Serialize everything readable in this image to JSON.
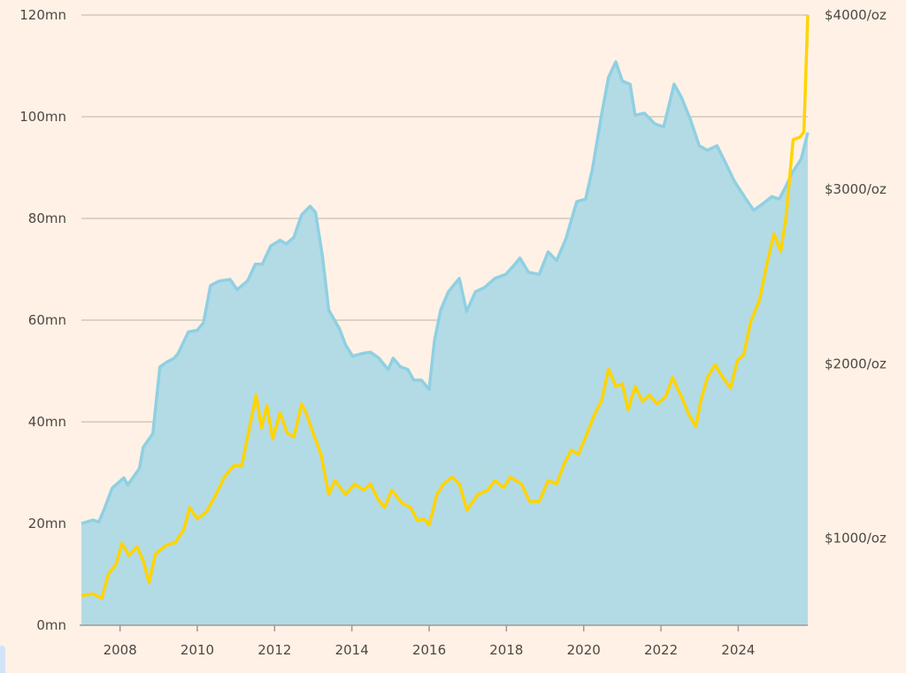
{
  "chart_data": {
    "type": "area+line",
    "title": "",
    "xlabel": "",
    "ylabel_left": "",
    "ylabel_right": "",
    "xlim": [
      2007.0,
      2025.8
    ],
    "x_ticks": [
      "2008",
      "2010",
      "2012",
      "2014",
      "2016",
      "2018",
      "2020",
      "2022",
      "2024"
    ],
    "left_axis": {
      "ylim": [
        0,
        120
      ],
      "ticks": [
        0,
        20,
        40,
        60,
        80,
        100,
        120
      ],
      "tick_labels": [
        "0mn",
        "20mn",
        "40mn",
        "60mn",
        "80mn",
        "100mn",
        "120mn"
      ]
    },
    "right_axis": {
      "ylim": [
        500,
        4000
      ],
      "ticks": [
        1000,
        2000,
        3000,
        4000
      ],
      "tick_labels": [
        "$1000/oz",
        "$2000/oz",
        "$3000/oz",
        "$4000/oz"
      ]
    },
    "grid": "horizontal",
    "colors": {
      "background": "#fff1e5",
      "area_fill": "#b3dbe5",
      "area_line": "#8fd0e3",
      "gold_line": "#ffd400",
      "grid": "#cbbfb4",
      "text": "#4d4845"
    },
    "series": [
      {
        "axis": "left",
        "type": "area",
        "points": [
          [
            2007.0,
            20
          ],
          [
            2007.3,
            20.7
          ],
          [
            2007.45,
            20.3
          ],
          [
            2007.6,
            23
          ],
          [
            2007.8,
            27
          ],
          [
            2008.1,
            29
          ],
          [
            2008.2,
            27.6
          ],
          [
            2008.5,
            30.8
          ],
          [
            2008.6,
            35
          ],
          [
            2008.85,
            37.7
          ],
          [
            2009.03,
            50.8
          ],
          [
            2009.2,
            51.7
          ],
          [
            2009.4,
            52.5
          ],
          [
            2009.5,
            53.4
          ],
          [
            2009.77,
            57.7
          ],
          [
            2010.0,
            58
          ],
          [
            2010.16,
            59.5
          ],
          [
            2010.34,
            66.8
          ],
          [
            2010.57,
            67.7
          ],
          [
            2010.85,
            68
          ],
          [
            2011.03,
            66
          ],
          [
            2011.3,
            67.7
          ],
          [
            2011.5,
            71
          ],
          [
            2011.68,
            71
          ],
          [
            2011.9,
            74.6
          ],
          [
            2012.14,
            75.7
          ],
          [
            2012.3,
            75
          ],
          [
            2012.5,
            76.3
          ],
          [
            2012.7,
            80.7
          ],
          [
            2012.92,
            82.4
          ],
          [
            2013.06,
            81.2
          ],
          [
            2013.24,
            72.5
          ],
          [
            2013.4,
            62
          ],
          [
            2013.68,
            58.3
          ],
          [
            2013.84,
            55.1
          ],
          [
            2014.02,
            52.9
          ],
          [
            2014.25,
            53.4
          ],
          [
            2014.48,
            53.7
          ],
          [
            2014.7,
            52.5
          ],
          [
            2014.94,
            50.3
          ],
          [
            2015.07,
            52.5
          ],
          [
            2015.26,
            50.8
          ],
          [
            2015.45,
            50.3
          ],
          [
            2015.6,
            48.2
          ],
          [
            2015.8,
            48.2
          ],
          [
            2016.0,
            46.4
          ],
          [
            2016.14,
            56
          ],
          [
            2016.3,
            62
          ],
          [
            2016.5,
            65.6
          ],
          [
            2016.78,
            68.2
          ],
          [
            2016.97,
            61.7
          ],
          [
            2017.2,
            65.6
          ],
          [
            2017.43,
            66.4
          ],
          [
            2017.7,
            68.2
          ],
          [
            2017.98,
            69
          ],
          [
            2018.2,
            70.8
          ],
          [
            2018.35,
            72.2
          ],
          [
            2018.57,
            69.4
          ],
          [
            2018.85,
            69
          ],
          [
            2019.08,
            73.4
          ],
          [
            2019.3,
            71.7
          ],
          [
            2019.54,
            76
          ],
          [
            2019.82,
            83.3
          ],
          [
            2020.05,
            83.8
          ],
          [
            2020.23,
            89.9
          ],
          [
            2020.46,
            100.3
          ],
          [
            2020.64,
            107.7
          ],
          [
            2020.83,
            110.8
          ],
          [
            2021.0,
            107
          ],
          [
            2021.2,
            106.4
          ],
          [
            2021.33,
            100.3
          ],
          [
            2021.57,
            100.7
          ],
          [
            2021.84,
            98.6
          ],
          [
            2022.07,
            98
          ],
          [
            2022.2,
            102
          ],
          [
            2022.34,
            106.4
          ],
          [
            2022.53,
            103.8
          ],
          [
            2022.76,
            99.5
          ],
          [
            2022.99,
            94.3
          ],
          [
            2023.2,
            93.4
          ],
          [
            2023.45,
            94.3
          ],
          [
            2023.68,
            90.8
          ],
          [
            2023.9,
            87.3
          ],
          [
            2024.2,
            83.8
          ],
          [
            2024.4,
            81.6
          ],
          [
            2024.64,
            82.9
          ],
          [
            2024.87,
            84.3
          ],
          [
            2025.06,
            83.8
          ],
          [
            2025.24,
            86.4
          ],
          [
            2025.4,
            89
          ],
          [
            2025.63,
            91.7
          ],
          [
            2025.8,
            96.9
          ]
        ]
      },
      {
        "axis": "right",
        "type": "line",
        "points": [
          [
            2007.0,
            670
          ],
          [
            2007.3,
            680
          ],
          [
            2007.53,
            655
          ],
          [
            2007.7,
            795
          ],
          [
            2007.9,
            850
          ],
          [
            2008.05,
            970
          ],
          [
            2008.23,
            900
          ],
          [
            2008.44,
            950
          ],
          [
            2008.6,
            870
          ],
          [
            2008.75,
            745
          ],
          [
            2008.92,
            910
          ],
          [
            2009.2,
            960
          ],
          [
            2009.43,
            975
          ],
          [
            2009.65,
            1050
          ],
          [
            2009.8,
            1175
          ],
          [
            2010.0,
            1110
          ],
          [
            2010.23,
            1150
          ],
          [
            2010.46,
            1240
          ],
          [
            2010.7,
            1350
          ],
          [
            2010.94,
            1415
          ],
          [
            2011.15,
            1415
          ],
          [
            2011.3,
            1580
          ],
          [
            2011.52,
            1820
          ],
          [
            2011.66,
            1630
          ],
          [
            2011.8,
            1760
          ],
          [
            2011.95,
            1570
          ],
          [
            2012.14,
            1720
          ],
          [
            2012.32,
            1605
          ],
          [
            2012.5,
            1580
          ],
          [
            2012.7,
            1770
          ],
          [
            2012.83,
            1710
          ],
          [
            2013.0,
            1600
          ],
          [
            2013.2,
            1480
          ],
          [
            2013.4,
            1250
          ],
          [
            2013.56,
            1330
          ],
          [
            2013.84,
            1250
          ],
          [
            2014.07,
            1310
          ],
          [
            2014.3,
            1275
          ],
          [
            2014.48,
            1310
          ],
          [
            2014.67,
            1225
          ],
          [
            2014.85,
            1175
          ],
          [
            2015.03,
            1275
          ],
          [
            2015.3,
            1200
          ],
          [
            2015.52,
            1175
          ],
          [
            2015.7,
            1100
          ],
          [
            2015.86,
            1110
          ],
          [
            2016.0,
            1075
          ],
          [
            2016.2,
            1250
          ],
          [
            2016.37,
            1310
          ],
          [
            2016.6,
            1350
          ],
          [
            2016.78,
            1310
          ],
          [
            2016.98,
            1160
          ],
          [
            2017.26,
            1250
          ],
          [
            2017.52,
            1275
          ],
          [
            2017.7,
            1330
          ],
          [
            2017.93,
            1290
          ],
          [
            2018.1,
            1350
          ],
          [
            2018.39,
            1310
          ],
          [
            2018.6,
            1210
          ],
          [
            2018.85,
            1210
          ],
          [
            2019.08,
            1330
          ],
          [
            2019.3,
            1310
          ],
          [
            2019.5,
            1430
          ],
          [
            2019.68,
            1505
          ],
          [
            2019.86,
            1480
          ],
          [
            2020.05,
            1580
          ],
          [
            2020.28,
            1710
          ],
          [
            2020.46,
            1785
          ],
          [
            2020.64,
            1970
          ],
          [
            2020.83,
            1870
          ],
          [
            2021.0,
            1885
          ],
          [
            2021.15,
            1735
          ],
          [
            2021.33,
            1870
          ],
          [
            2021.52,
            1785
          ],
          [
            2021.7,
            1820
          ],
          [
            2021.9,
            1770
          ],
          [
            2022.12,
            1810
          ],
          [
            2022.3,
            1920
          ],
          [
            2022.53,
            1810
          ],
          [
            2022.72,
            1710
          ],
          [
            2022.9,
            1640
          ],
          [
            2023.03,
            1785
          ],
          [
            2023.2,
            1920
          ],
          [
            2023.4,
            1995
          ],
          [
            2023.56,
            1935
          ],
          [
            2023.8,
            1860
          ],
          [
            2023.98,
            2020
          ],
          [
            2024.14,
            2050
          ],
          [
            2024.32,
            2240
          ],
          [
            2024.55,
            2365
          ],
          [
            2024.74,
            2570
          ],
          [
            2024.92,
            2745
          ],
          [
            2025.1,
            2645
          ],
          [
            2025.24,
            2845
          ],
          [
            2025.42,
            3285
          ],
          [
            2025.6,
            3300
          ],
          [
            2025.7,
            3330
          ],
          [
            2025.8,
            4000
          ]
        ]
      }
    ]
  }
}
